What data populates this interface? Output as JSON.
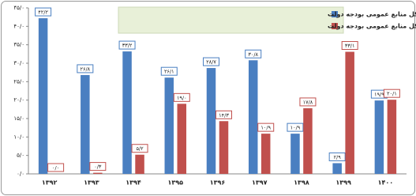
{
  "chart_data": {
    "type": "bar",
    "categories": [
      "۱۳۹۲",
      "۱۳۹۳",
      "۱۳۹۴",
      "۱۳۹۵",
      "۱۳۹۶",
      "۱۳۹۷",
      "۱۳۹۸",
      "۱۳۹۹",
      "۱۴۰۰"
    ],
    "series": [
      {
        "name": "سهم فروش نفت و گاز از کل منابع عمومی بودجه دولت",
        "color": "#4a7fc1",
        "values": [
          42.2,
          26.8,
          33.2,
          26.1,
          28.7,
          30.8,
          10.9,
          2.9,
          19.9
        ],
        "value_labels": [
          "۴۲/۲",
          "۲۶/۸",
          "۳۳/۲",
          "۲۶/۱",
          "۲۸/۷",
          "۳۰/۸",
          "۱۰/۹",
          "۲/۹",
          "۱۹/۹"
        ]
      },
      {
        "name": "سهم فروش اوراق از کل منابع عمومی بودجه دولت",
        "color": "#c0504d",
        "values": [
          0.0,
          0.3,
          5.2,
          19.0,
          14.3,
          10.9,
          17.8,
          33.1,
          20.1
        ],
        "value_labels": [
          "۰/۰",
          "۰/۳",
          "۵/۲",
          "۱۹/۰",
          "۱۴/۳",
          "۱۰/۹",
          "۱۷/۸",
          "۳۳/۱",
          "۲۰/۱"
        ]
      }
    ],
    "ylim": [
      0,
      45
    ],
    "yticks": [
      {
        "value": 0,
        "label": "۰/۰"
      },
      {
        "value": 5,
        "label": "۵/۰"
      },
      {
        "value": 10,
        "label": "۱۰/۰"
      },
      {
        "value": 15,
        "label": "۱۵/۰"
      },
      {
        "value": 20,
        "label": "۲۰/۰"
      },
      {
        "value": 25,
        "label": "۲۵/۰"
      },
      {
        "value": 30,
        "label": "۳۰/۰"
      },
      {
        "value": 35,
        "label": "۳۵/۰"
      },
      {
        "value": 40,
        "label": "۴۰/۰"
      },
      {
        "value": 45,
        "label": "۴۵/۰"
      }
    ],
    "legend_position": "top"
  }
}
